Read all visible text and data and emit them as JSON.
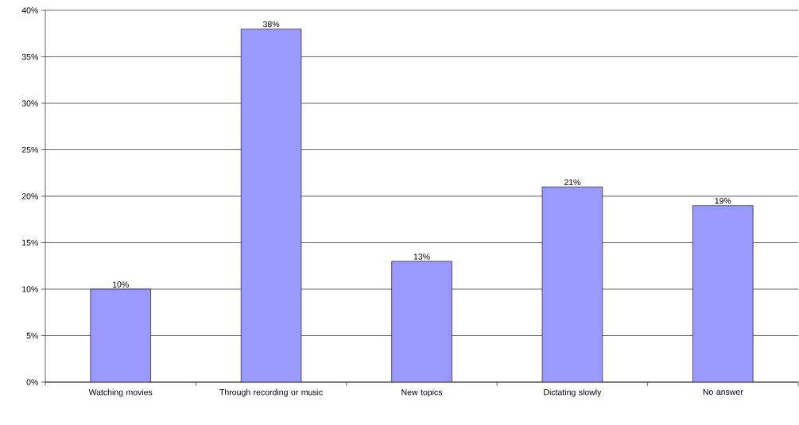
{
  "chart_data": {
    "type": "bar",
    "categories": [
      "Watching movies",
      "Through recording or music",
      "New topics",
      "Dictating slowly",
      "No answer"
    ],
    "values": [
      10,
      38,
      13,
      21,
      19
    ],
    "value_labels": [
      "10%",
      "38%",
      "13%",
      "21%",
      "19%"
    ],
    "color": "#9999ff",
    "ylim": [
      0,
      40
    ],
    "yticks": [
      {
        "value": 0,
        "label": "0%"
      },
      {
        "value": 5,
        "label": "5%"
      },
      {
        "value": 10,
        "label": "10%"
      },
      {
        "value": 15,
        "label": "15%"
      },
      {
        "value": 20,
        "label": "20%"
      },
      {
        "value": 25,
        "label": "25%"
      },
      {
        "value": 30,
        "label": "30%"
      },
      {
        "value": 35,
        "label": "35%"
      },
      {
        "value": 40,
        "label": "40%"
      }
    ],
    "grid": "y"
  }
}
